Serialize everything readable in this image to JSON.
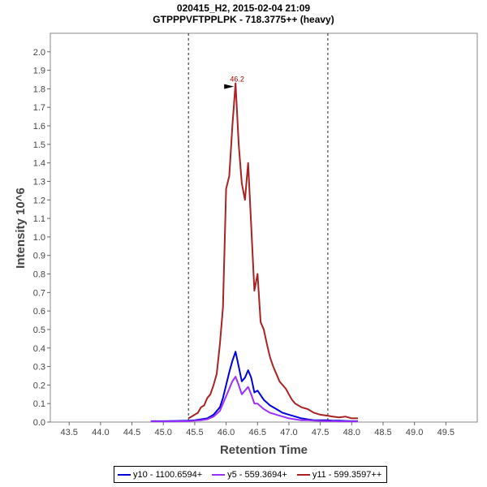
{
  "chart_data": {
    "type": "line",
    "title": "020415_H2, 2015-02-04 21:09",
    "subtitle": "GTPPPVFTPPLPK - 718.3775++ (heavy)",
    "xlabel": "Retention Time",
    "ylabel": "Intensity 10^6",
    "xlim": [
      43.2,
      50.0
    ],
    "ylim": [
      0,
      2.1
    ],
    "xticks": [
      "43.5",
      "44.0",
      "44.5",
      "45.0",
      "45.5",
      "46.0",
      "46.5",
      "47.0",
      "47.5",
      "48.0",
      "48.5",
      "49.0",
      "49.5"
    ],
    "yticks": [
      "0.0",
      "0.1",
      "0.2",
      "0.3",
      "0.4",
      "0.5",
      "0.6",
      "0.7",
      "0.8",
      "0.9",
      "1.0",
      "1.1",
      "1.2",
      "1.3",
      "1.4",
      "1.5",
      "1.6",
      "1.7",
      "1.8",
      "1.9",
      "2.0"
    ],
    "grid": false,
    "legend_position": "bottom",
    "boundaries": [
      45.4,
      47.62
    ],
    "peak_label": {
      "text": "46.2",
      "x": 46.15,
      "y": 1.83
    },
    "series": [
      {
        "name": "y10 - 1100.6594+",
        "color": "#0000dd",
        "x": [
          44.8,
          45.0,
          45.2,
          45.4,
          45.5,
          45.6,
          45.7,
          45.8,
          45.9,
          45.95,
          46.0,
          46.05,
          46.1,
          46.15,
          46.2,
          46.25,
          46.3,
          46.35,
          46.4,
          46.45,
          46.5,
          46.6,
          46.7,
          46.8,
          46.9,
          47.0,
          47.1,
          47.2,
          47.3,
          47.4,
          47.5,
          47.6,
          47.7,
          47.8,
          47.9,
          48.0,
          48.1
        ],
        "y": [
          0.005,
          0.005,
          0.006,
          0.008,
          0.01,
          0.015,
          0.02,
          0.04,
          0.08,
          0.13,
          0.2,
          0.27,
          0.33,
          0.38,
          0.3,
          0.22,
          0.24,
          0.28,
          0.24,
          0.16,
          0.17,
          0.12,
          0.09,
          0.07,
          0.05,
          0.04,
          0.03,
          0.02,
          0.015,
          0.01,
          0.01,
          0.01,
          0.008,
          0.008,
          0.006,
          0.005,
          0.005
        ]
      },
      {
        "name": "y5 - 559.3694+",
        "color": "#9b30ff",
        "x": [
          44.8,
          45.0,
          45.2,
          45.4,
          45.5,
          45.6,
          45.7,
          45.8,
          45.9,
          45.95,
          46.0,
          46.05,
          46.1,
          46.15,
          46.2,
          46.25,
          46.3,
          46.35,
          46.4,
          46.45,
          46.5,
          46.6,
          46.7,
          46.8,
          46.9,
          47.0,
          47.1,
          47.2,
          47.3,
          47.4,
          47.5,
          47.6,
          47.7,
          47.8,
          47.9,
          48.0,
          48.1
        ],
        "y": [
          0.003,
          0.003,
          0.004,
          0.005,
          0.008,
          0.01,
          0.015,
          0.03,
          0.06,
          0.1,
          0.14,
          0.18,
          0.22,
          0.245,
          0.2,
          0.15,
          0.17,
          0.19,
          0.15,
          0.1,
          0.1,
          0.07,
          0.05,
          0.04,
          0.03,
          0.02,
          0.015,
          0.01,
          0.01,
          0.008,
          0.006,
          0.005,
          0.005,
          0.004,
          0.004,
          0.003,
          0.003
        ]
      },
      {
        "name": "y11 - 599.3597++",
        "color": "#aa2222",
        "x": [
          45.4,
          45.45,
          45.5,
          45.55,
          45.6,
          45.65,
          45.7,
          45.75,
          45.8,
          45.85,
          45.9,
          45.95,
          46.0,
          46.05,
          46.1,
          46.15,
          46.2,
          46.25,
          46.3,
          46.35,
          46.4,
          46.45,
          46.5,
          46.55,
          46.6,
          46.65,
          46.7,
          46.75,
          46.8,
          46.85,
          46.9,
          46.95,
          47.0,
          47.05,
          47.1,
          47.15,
          47.2,
          47.3,
          47.4,
          47.5,
          47.6,
          47.7,
          47.8,
          47.9,
          48.0,
          48.1
        ],
        "y": [
          0.02,
          0.03,
          0.04,
          0.05,
          0.08,
          0.09,
          0.13,
          0.15,
          0.2,
          0.26,
          0.42,
          0.62,
          1.26,
          1.33,
          1.6,
          1.83,
          1.5,
          1.29,
          1.2,
          1.4,
          1.06,
          0.71,
          0.8,
          0.54,
          0.5,
          0.42,
          0.35,
          0.3,
          0.26,
          0.22,
          0.2,
          0.18,
          0.15,
          0.12,
          0.1,
          0.09,
          0.08,
          0.07,
          0.05,
          0.04,
          0.035,
          0.03,
          0.025,
          0.03,
          0.02,
          0.02
        ]
      }
    ]
  }
}
